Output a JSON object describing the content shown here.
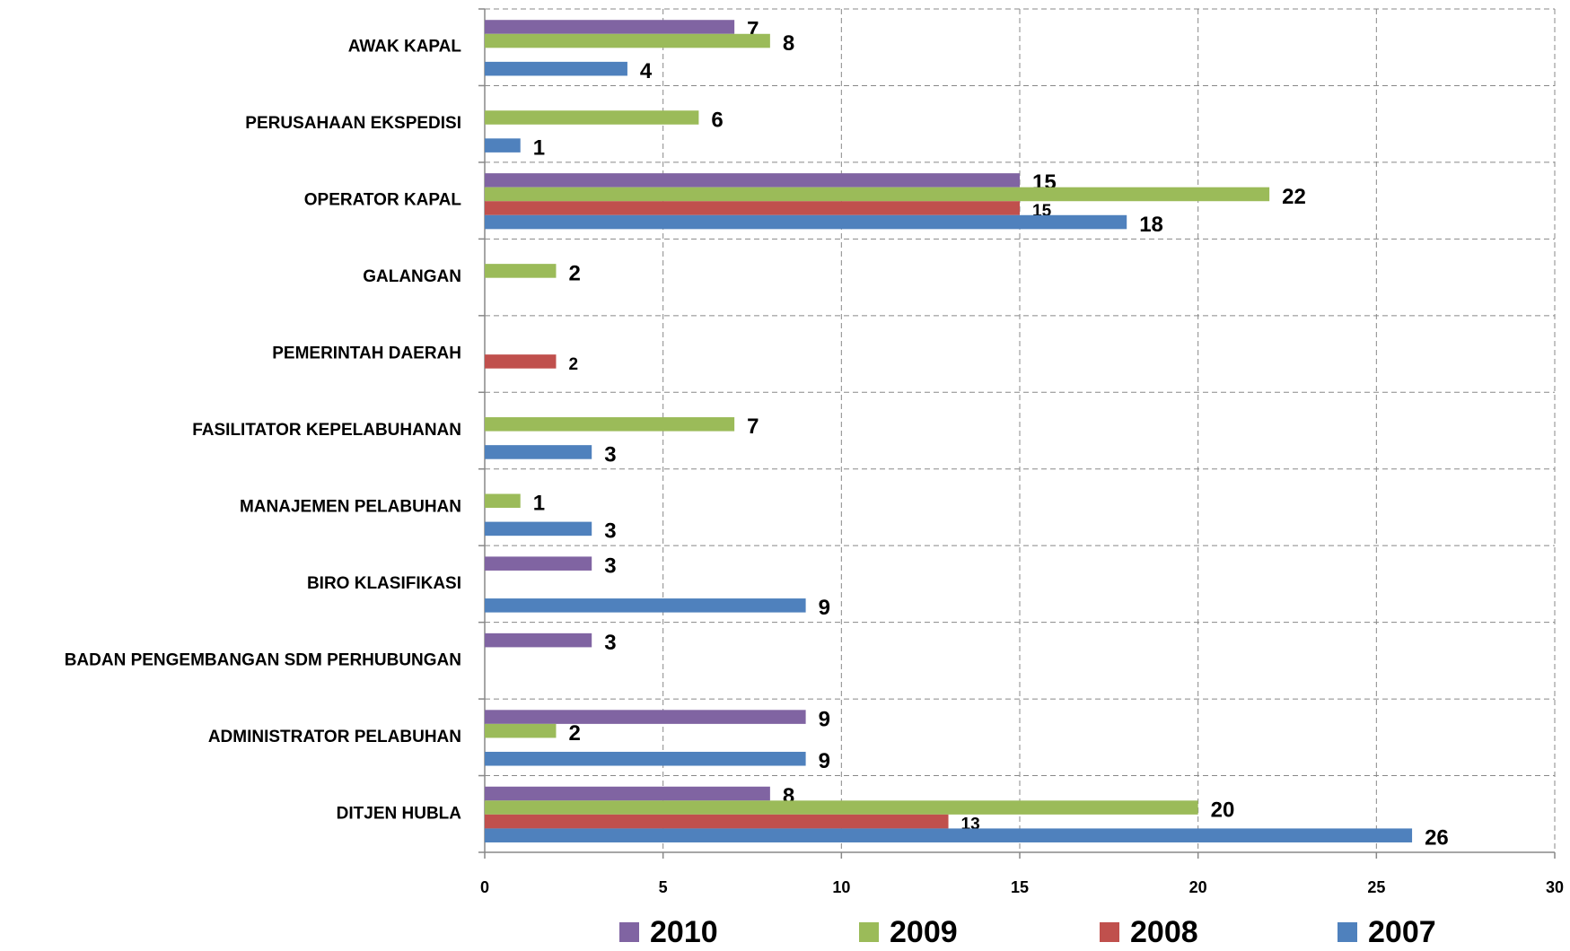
{
  "chart_data": {
    "type": "hbar",
    "categories": [
      "AWAK KAPAL",
      "PERUSAHAAN EKSPEDISI",
      "OPERATOR KAPAL",
      "GALANGAN",
      "PEMERINTAH DAERAH",
      "FASILITATOR KEPELABUHANAN",
      "MANAJEMEN PELABUHAN",
      "BIRO KLASIFIKASI",
      "BADAN PENGEMBANGAN SDM PERHUBUNGAN",
      "ADMINISTRATOR PELABUHAN",
      "DITJEN HUBLA"
    ],
    "series": [
      {
        "name": "2010",
        "color": "#8064a2",
        "values": [
          7,
          null,
          15,
          null,
          null,
          null,
          null,
          3,
          3,
          9,
          8
        ]
      },
      {
        "name": "2009",
        "color": "#9bbb59",
        "values": [
          8,
          6,
          22,
          2,
          null,
          7,
          1,
          null,
          null,
          2,
          20
        ]
      },
      {
        "name": "2008",
        "color": "#c0504d",
        "values": [
          null,
          null,
          15,
          null,
          2,
          null,
          null,
          null,
          null,
          null,
          13
        ]
      },
      {
        "name": "2007",
        "color": "#4f81bd",
        "values": [
          4,
          1,
          18,
          null,
          null,
          3,
          3,
          9,
          null,
          9,
          26
        ]
      }
    ],
    "xlim": [
      0,
      30
    ],
    "xticks": [
      0,
      5,
      10,
      15,
      20,
      25,
      30
    ],
    "grid": true,
    "legend": "bottom"
  }
}
